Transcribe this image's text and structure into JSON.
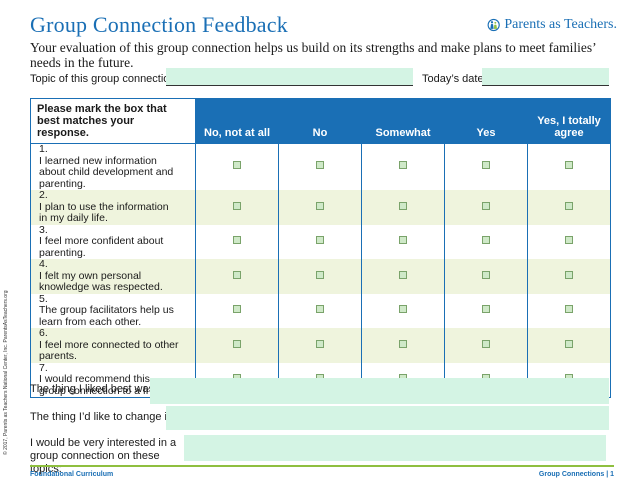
{
  "header": {
    "title": "Group Connection Feedback",
    "logo_text": "Parents as Teachers.",
    "logo_icon": "parents-figure-icon",
    "brand_color": "#1a6fb5"
  },
  "intro": "Your evaluation of this group connection helps us build on its strengths and make plans to meet families’ needs in the future.",
  "fields": {
    "topic_label": "Topic of this group connection:",
    "topic_value": "",
    "date_label": "Today’s date:",
    "date_value": ""
  },
  "table": {
    "instruction": "Please mark the box that best matches your response.",
    "columns": [
      "No, not at all",
      "No",
      "Somewhat",
      "Yes",
      "Yes, I totally agree"
    ],
    "questions": [
      {
        "num": "1.",
        "text": "I learned new information about child development and parenting."
      },
      {
        "num": "2.",
        "text": "I plan to use the information in my daily life."
      },
      {
        "num": "3.",
        "text": "I feel more confident about parenting."
      },
      {
        "num": "4.",
        "text": "I felt my own personal knowledge was respected."
      },
      {
        "num": "5.",
        "text": "The group facilitators help us learn from each other."
      },
      {
        "num": "6.",
        "text": "I feel more connected to other parents."
      },
      {
        "num": "7.",
        "text": "I would recommend this group connection to a friend."
      }
    ],
    "row_shade_color": "#eff4dd",
    "checkbox_color": "#cfe9c8"
  },
  "open_questions": {
    "liked_best_label": "The thing I liked best was:",
    "liked_best_value": "",
    "change_label": "The thing I’d like to change is:",
    "change_value": "",
    "interested_label": "I would be very interested in a group connection on these topics:",
    "interested_value": "",
    "field_color": "#d4f4e4"
  },
  "footer": {
    "left": "Foundational Curriculum",
    "right": "Group Connections  |  1",
    "copyright": "© 2017, Parents as Teachers National Center, Inc. ParentsAsTeachers.org",
    "rule_color": "#8fbf3f"
  }
}
